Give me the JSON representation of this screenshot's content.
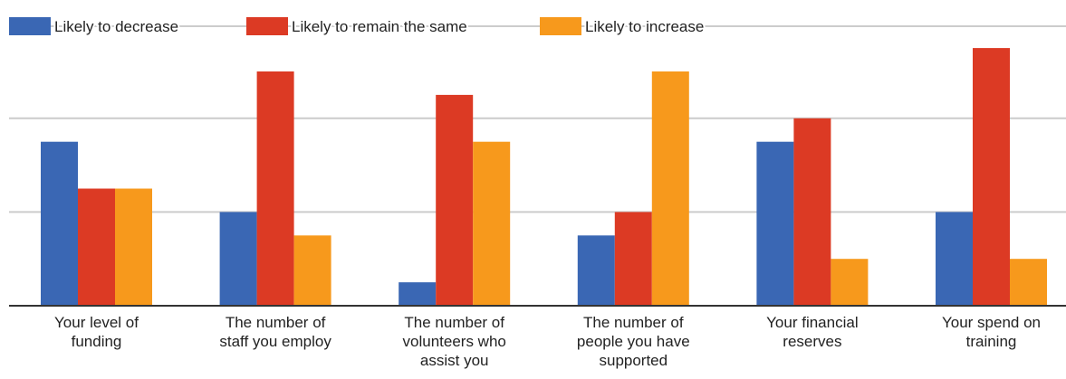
{
  "chart_data": {
    "type": "bar",
    "title": "",
    "xlabel": "",
    "ylabel": "",
    "ylim": [
      0,
      11
    ],
    "gridlines": [
      0,
      4,
      8
    ],
    "grid": true,
    "legend_position": "top",
    "categories": [
      [
        "Your level of",
        "funding"
      ],
      [
        "The number of",
        "staff you employ"
      ],
      [
        "The number of",
        "volunteers who",
        "assist you"
      ],
      [
        "The number of",
        "people you have",
        "supported"
      ],
      [
        "Your financial",
        "reserves"
      ],
      [
        "Your spend on",
        "training"
      ]
    ],
    "series": [
      {
        "name": "Likely to decrease",
        "color": "#3a67b4",
        "values": [
          7,
          4,
          1,
          3,
          7,
          4
        ]
      },
      {
        "name": "Likely to remain the same",
        "color": "#dc3a24",
        "values": [
          5,
          10,
          9,
          4,
          8,
          11
        ]
      },
      {
        "name": "Likely to increase",
        "color": "#f7991c",
        "values": [
          5,
          3,
          7,
          10,
          2,
          2
        ]
      }
    ]
  }
}
